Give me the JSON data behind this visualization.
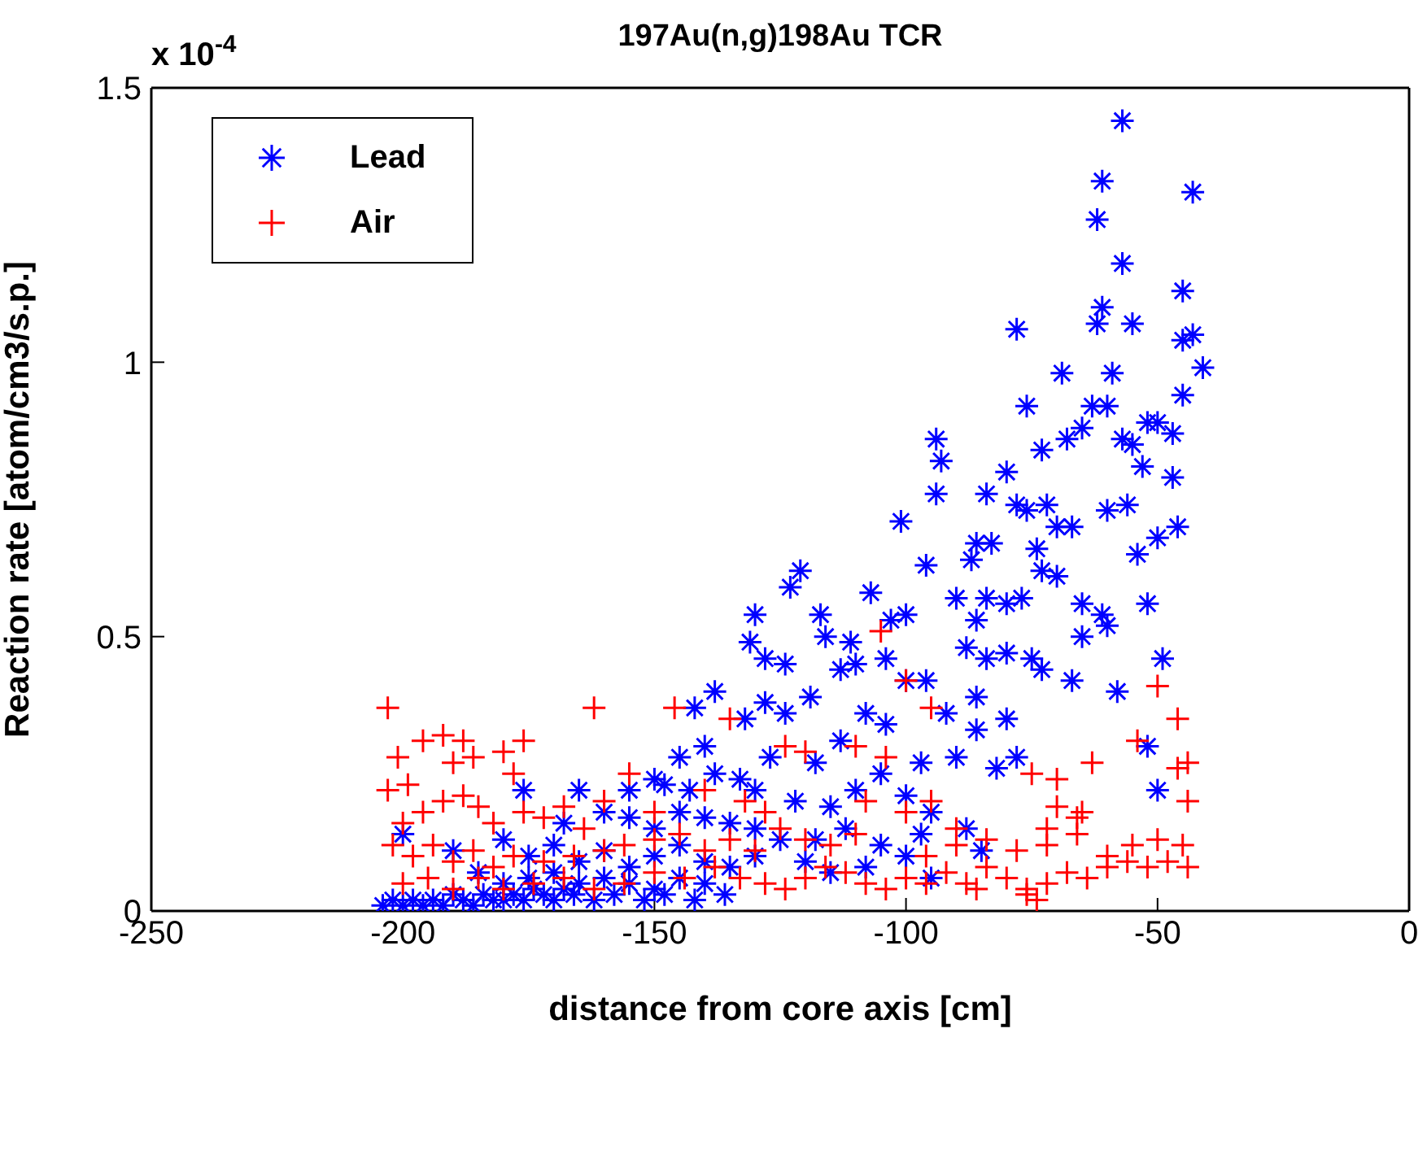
{
  "chart_data": {
    "type": "scatter",
    "title": "197Au(n,g)198Au TCR",
    "xlabel": "distance from core axis [cm]",
    "ylabel": "Reaction rate [atom/cm3/s.p.]",
    "annotations": [
      "x 10$^{-4}$"
    ],
    "xlim": [
      -250,
      0
    ],
    "xticks": [
      -250,
      -200,
      -150,
      -100,
      -50,
      0
    ],
    "ylim": [
      0,
      1.5
    ],
    "yticks": [
      0,
      0.5,
      1,
      1.5
    ],
    "grid": false,
    "legend": "top left",
    "series": [
      {
        "name": "Lead",
        "color": "#0000ff",
        "x": [
          -57,
          -61,
          -43,
          -62,
          -57,
          -45,
          -61,
          -62,
          -55,
          -43,
          -45,
          -78,
          -41,
          -59,
          -69,
          -63,
          -60,
          -76,
          -45,
          -73,
          -50,
          -52,
          -68,
          -65,
          -57,
          -55,
          -47,
          -53,
          -94,
          -93,
          -80,
          -84,
          -94,
          -101,
          -78,
          -76,
          -72,
          -60,
          -56,
          -47,
          -67,
          -70,
          -54,
          -50,
          -46,
          -83,
          -86,
          -87,
          -96,
          -74,
          -73,
          -70,
          -121,
          -123,
          -117,
          -107,
          -100,
          -103,
          -90,
          -84,
          -86,
          -80,
          -77,
          -65,
          -60,
          -65,
          -52,
          -61,
          -130,
          -131,
          -128,
          -124,
          -116,
          -111,
          -110,
          -113,
          -104,
          -100,
          -96,
          -88,
          -84,
          -86,
          -80,
          -75,
          -73,
          -67,
          -58,
          -49,
          -142,
          -138,
          -128,
          -124,
          -119,
          -108,
          -104,
          -92,
          -86,
          -80,
          -78,
          -52,
          -132,
          -140,
          -145,
          -127,
          -118,
          -113,
          -105,
          -97,
          -90,
          -82,
          -50,
          -150,
          -155,
          -148,
          -143,
          -138,
          -133,
          -130,
          -122,
          -115,
          -110,
          -100,
          -95,
          -176,
          -165,
          -160,
          -168,
          -155,
          -150,
          -145,
          -140,
          -135,
          -130,
          -125,
          -118,
          -112,
          -105,
          -97,
          -88,
          -85,
          -200,
          -190,
          -180,
          -175,
          -170,
          -165,
          -160,
          -155,
          -150,
          -145,
          -140,
          -135,
          -130,
          -120,
          -115,
          -108,
          -100,
          -95,
          -185,
          -180,
          -175,
          -170,
          -165,
          -160,
          -155,
          -150,
          -145,
          -140,
          -204,
          -202,
          -200,
          -198,
          -196,
          -194,
          -192,
          -190,
          -188,
          -186,
          -184,
          -182,
          -180,
          -178,
          -176,
          -174,
          -172,
          -170,
          -168,
          -166,
          -162,
          -158,
          -152,
          -148,
          -142,
          -136
        ],
        "values": [
          1.44,
          1.33,
          1.31,
          1.26,
          1.18,
          1.13,
          1.1,
          1.07,
          1.07,
          1.05,
          1.04,
          1.06,
          0.99,
          0.98,
          0.98,
          0.92,
          0.92,
          0.92,
          0.94,
          0.84,
          0.89,
          0.89,
          0.86,
          0.88,
          0.86,
          0.85,
          0.87,
          0.81,
          0.86,
          0.82,
          0.8,
          0.76,
          0.76,
          0.71,
          0.74,
          0.73,
          0.74,
          0.73,
          0.74,
          0.79,
          0.7,
          0.7,
          0.65,
          0.68,
          0.7,
          0.67,
          0.67,
          0.64,
          0.63,
          0.66,
          0.62,
          0.61,
          0.62,
          0.59,
          0.54,
          0.58,
          0.54,
          0.53,
          0.57,
          0.57,
          0.53,
          0.56,
          0.57,
          0.56,
          0.52,
          0.5,
          0.56,
          0.54,
          0.54,
          0.49,
          0.46,
          0.45,
          0.5,
          0.49,
          0.45,
          0.44,
          0.46,
          0.42,
          0.42,
          0.48,
          0.46,
          0.39,
          0.47,
          0.46,
          0.44,
          0.42,
          0.4,
          0.46,
          0.37,
          0.4,
          0.38,
          0.36,
          0.39,
          0.36,
          0.34,
          0.36,
          0.33,
          0.35,
          0.28,
          0.3,
          0.35,
          0.3,
          0.28,
          0.28,
          0.27,
          0.31,
          0.25,
          0.27,
          0.28,
          0.26,
          0.22,
          0.24,
          0.22,
          0.23,
          0.22,
          0.25,
          0.24,
          0.22,
          0.2,
          0.19,
          0.22,
          0.21,
          0.18,
          0.22,
          0.22,
          0.18,
          0.16,
          0.17,
          0.15,
          0.18,
          0.17,
          0.16,
          0.15,
          0.13,
          0.13,
          0.15,
          0.12,
          0.14,
          0.15,
          0.11,
          0.14,
          0.11,
          0.13,
          0.1,
          0.12,
          0.09,
          0.11,
          0.08,
          0.1,
          0.12,
          0.09,
          0.08,
          0.1,
          0.09,
          0.07,
          0.08,
          0.1,
          0.06,
          0.07,
          0.05,
          0.06,
          0.07,
          0.05,
          0.06,
          0.05,
          0.04,
          0.06,
          0.05,
          0.01,
          0.02,
          0.01,
          0.02,
          0.01,
          0.02,
          0.01,
          0.03,
          0.02,
          0.01,
          0.03,
          0.02,
          0.02,
          0.03,
          0.02,
          0.04,
          0.03,
          0.02,
          0.04,
          0.03,
          0.02,
          0.03,
          0.02,
          0.03,
          0.02,
          0.03
        ]
      },
      {
        "name": "Air",
        "color": "#ff0000",
        "marker": "cross",
        "x": [
          -203,
          -201,
          -203,
          -199,
          -196,
          -192,
          -188,
          -176,
          -190,
          -186,
          -178,
          -180,
          -200,
          -196,
          -192,
          -188,
          -185,
          -182,
          -176,
          -172,
          -168,
          -164,
          -202,
          -198,
          -194,
          -190,
          -186,
          -182,
          -178,
          -172,
          -166,
          -160,
          -156,
          -150,
          -200,
          -195,
          -190,
          -185,
          -180,
          -174,
          -168,
          -162,
          -156,
          -150,
          -144,
          -138,
          -133,
          -128,
          -124,
          -120,
          -116,
          -112,
          -108,
          -104,
          -100,
          -96,
          -92,
          -88,
          -84,
          -80,
          -76,
          -72,
          -68,
          -64,
          -60,
          -56,
          -52,
          -48,
          -44,
          -76,
          -74,
          -86,
          -96,
          -90,
          -84,
          -78,
          -72,
          -66,
          -60,
          -55,
          -50,
          -45,
          -44,
          -46,
          -44,
          -50,
          -46,
          -54,
          -63,
          -70,
          -75,
          -65,
          -70,
          -66,
          -72,
          -110,
          -115,
          -120,
          -125,
          -130,
          -135,
          -140,
          -145,
          -162,
          -146,
          -135,
          -124,
          -120,
          -110,
          -104,
          -100,
          -95,
          -105,
          -140,
          -155,
          -160,
          -150,
          -108,
          -100,
          -95,
          -90,
          -132,
          -128
        ],
        "values": [
          0.37,
          0.28,
          0.22,
          0.23,
          0.31,
          0.32,
          0.31,
          0.31,
          0.27,
          0.28,
          0.25,
          0.29,
          0.16,
          0.18,
          0.2,
          0.21,
          0.19,
          0.16,
          0.18,
          0.17,
          0.19,
          0.15,
          0.12,
          0.1,
          0.12,
          0.09,
          0.11,
          0.08,
          0.1,
          0.09,
          0.1,
          0.11,
          0.12,
          0.13,
          0.05,
          0.06,
          0.04,
          0.06,
          0.04,
          0.05,
          0.06,
          0.04,
          0.05,
          0.07,
          0.06,
          0.08,
          0.06,
          0.05,
          0.04,
          0.06,
          0.08,
          0.07,
          0.05,
          0.04,
          0.06,
          0.05,
          0.07,
          0.05,
          0.08,
          0.06,
          0.04,
          0.05,
          0.07,
          0.06,
          0.08,
          0.09,
          0.08,
          0.09,
          0.08,
          0.03,
          0.02,
          0.04,
          0.1,
          0.12,
          0.13,
          0.11,
          0.12,
          0.14,
          0.1,
          0.12,
          0.13,
          0.12,
          0.2,
          0.26,
          0.27,
          0.41,
          0.35,
          0.31,
          0.27,
          0.24,
          0.25,
          0.18,
          0.19,
          0.17,
          0.15,
          0.14,
          0.12,
          0.13,
          0.15,
          0.11,
          0.13,
          0.11,
          0.14,
          0.37,
          0.37,
          0.35,
          0.3,
          0.29,
          0.3,
          0.28,
          0.42,
          0.37,
          0.51,
          0.22,
          0.25,
          0.2,
          0.18,
          0.2,
          0.18,
          0.2,
          0.15,
          0.2,
          0.18
        ]
      }
    ]
  }
}
